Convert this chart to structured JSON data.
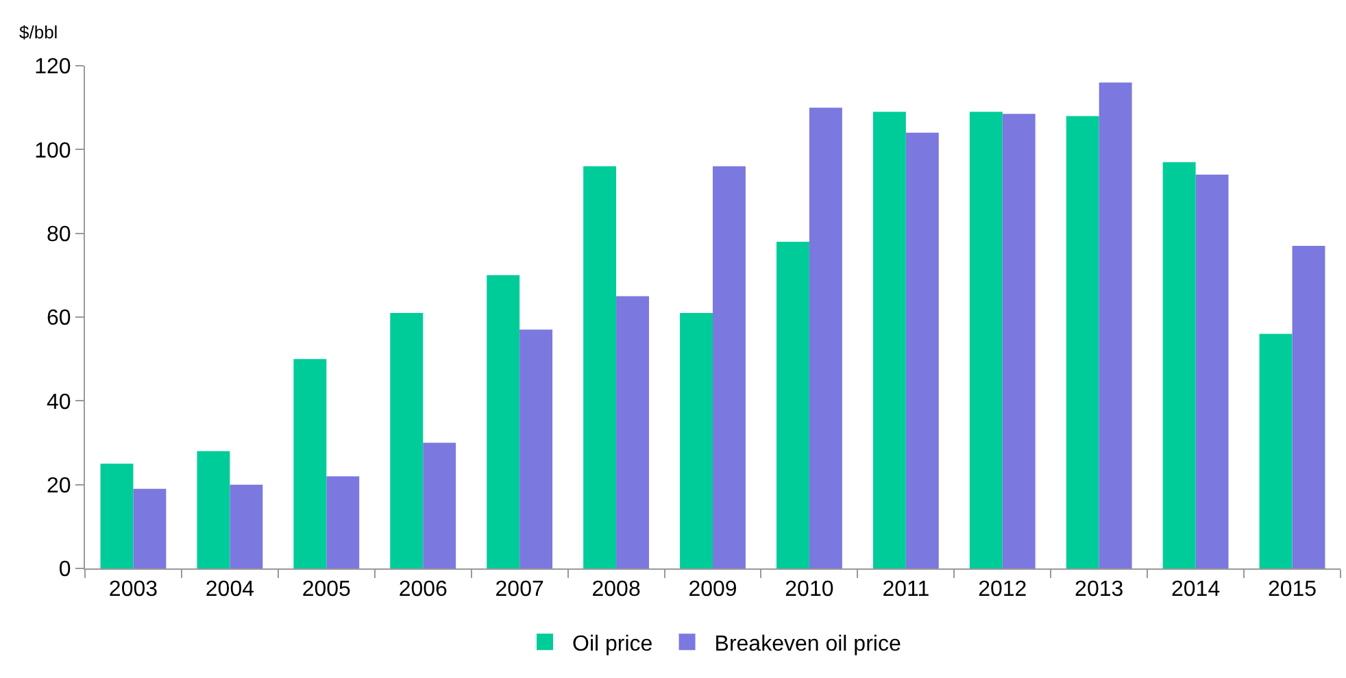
{
  "chart_data": {
    "type": "bar",
    "ylabel": "$/bbl",
    "categories": [
      "2003",
      "2004",
      "2005",
      "2006",
      "2007",
      "2008",
      "2009",
      "2010",
      "2011",
      "2012",
      "2013",
      "2014",
      "2015"
    ],
    "series": [
      {
        "name": "Oil price",
        "color": "#00cc99",
        "values": [
          25,
          28,
          50,
          61,
          70,
          96,
          61,
          78,
          109,
          109,
          108,
          97,
          56
        ]
      },
      {
        "name": "Breakeven oil price",
        "color": "#7b78e0",
        "values": [
          19,
          20,
          22,
          30,
          57,
          65,
          96,
          110,
          104,
          108.5,
          116,
          94,
          77
        ]
      }
    ],
    "ylim": [
      0,
      120
    ],
    "yticks": [
      0,
      20,
      40,
      60,
      80,
      100,
      120
    ],
    "grid": false,
    "legend": "bottom"
  }
}
